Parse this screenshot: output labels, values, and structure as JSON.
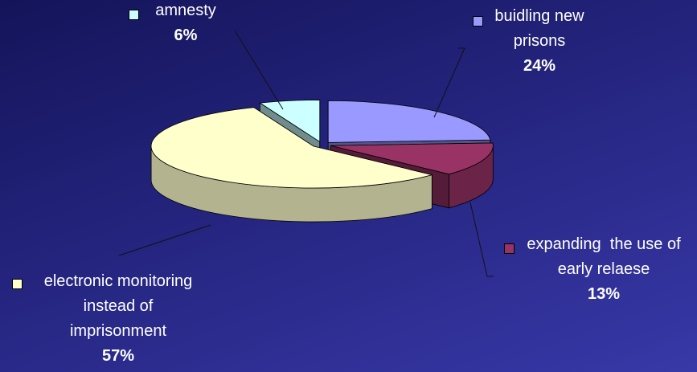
{
  "chart_data": {
    "type": "pie",
    "categories": [
      "buidling new prisons",
      "expanding  the use of early relaese",
      "electronic monitoring instead of imprisonment",
      "amnesty"
    ],
    "values": [
      24,
      13,
      57,
      6
    ],
    "value_labels": [
      "24%",
      "13%",
      "57%",
      "6%"
    ],
    "colors": [
      "#9999ff",
      "#993366",
      "#ffffcc",
      "#ccffff"
    ]
  }
}
